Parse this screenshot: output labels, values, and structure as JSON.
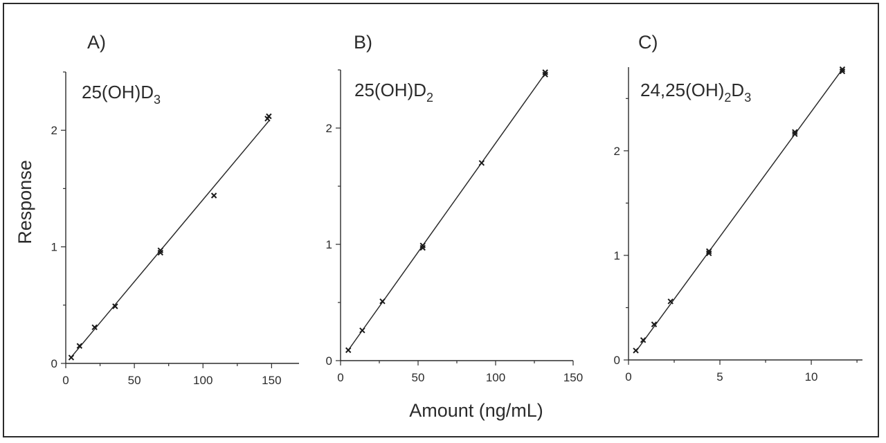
{
  "chart_data": [
    {
      "type": "scatter",
      "panel": "A)",
      "compound": {
        "base": "25(OH)D",
        "sub": "3"
      },
      "xlim": [
        0,
        170
      ],
      "ylim": [
        0,
        2.5
      ],
      "xticks": [
        0,
        50,
        100,
        150
      ],
      "yticks": [
        0,
        1,
        2
      ],
      "fit": {
        "x": [
          3,
          148
        ],
        "y": [
          0.04,
          2.08
        ]
      },
      "points": [
        {
          "x": 4,
          "y": 0.05
        },
        {
          "x": 10,
          "y": 0.15
        },
        {
          "x": 21,
          "y": 0.31
        },
        {
          "x": 36,
          "y": 0.49
        },
        {
          "x": 69,
          "y": 0.95
        },
        {
          "x": 69,
          "y": 0.97
        },
        {
          "x": 108,
          "y": 1.44
        },
        {
          "x": 147,
          "y": 2.1
        },
        {
          "x": 148,
          "y": 2.12
        }
      ]
    },
    {
      "type": "scatter",
      "panel": "B)",
      "compound": {
        "base": "25(OH)D",
        "sub": "2"
      },
      "xlim": [
        0,
        150
      ],
      "ylim": [
        0,
        2.5
      ],
      "xticks": [
        0,
        50,
        100,
        150
      ],
      "yticks": [
        0,
        1,
        2
      ],
      "fit": {
        "x": [
          5,
          132
        ],
        "y": [
          0.09,
          2.47
        ]
      },
      "points": [
        {
          "x": 5,
          "y": 0.09
        },
        {
          "x": 14,
          "y": 0.26
        },
        {
          "x": 27,
          "y": 0.51
        },
        {
          "x": 53,
          "y": 0.97
        },
        {
          "x": 53,
          "y": 0.99
        },
        {
          "x": 91,
          "y": 1.7
        },
        {
          "x": 132,
          "y": 2.46
        },
        {
          "x": 132,
          "y": 2.48
        }
      ]
    },
    {
      "type": "scatter",
      "panel": "C)",
      "compound": {
        "base": "24,25(OH)",
        "sub1": "2",
        "mid": "D",
        "sub2": "3"
      },
      "xlim": [
        0,
        12.8
      ],
      "ylim": [
        0,
        2.8
      ],
      "xticks": [
        0,
        5,
        10
      ],
      "yticks": [
        0,
        1,
        2
      ],
      "fit": {
        "x": [
          0.4,
          11.7
        ],
        "y": [
          0.08,
          2.78
        ]
      },
      "points": [
        {
          "x": 0.4,
          "y": 0.09
        },
        {
          "x": 0.8,
          "y": 0.19
        },
        {
          "x": 1.4,
          "y": 0.34
        },
        {
          "x": 2.3,
          "y": 0.56
        },
        {
          "x": 4.4,
          "y": 1.02
        },
        {
          "x": 4.4,
          "y": 1.04
        },
        {
          "x": 9.1,
          "y": 2.16
        },
        {
          "x": 9.1,
          "y": 2.18
        },
        {
          "x": 11.7,
          "y": 2.76
        },
        {
          "x": 11.7,
          "y": 2.78
        }
      ]
    }
  ],
  "ylabel": "Response",
  "xlabel": "Amount (ng/mL)",
  "colors": {
    "ink": "#2b2b2b",
    "marker": "#1a1a1a",
    "background": "#ffffff"
  }
}
